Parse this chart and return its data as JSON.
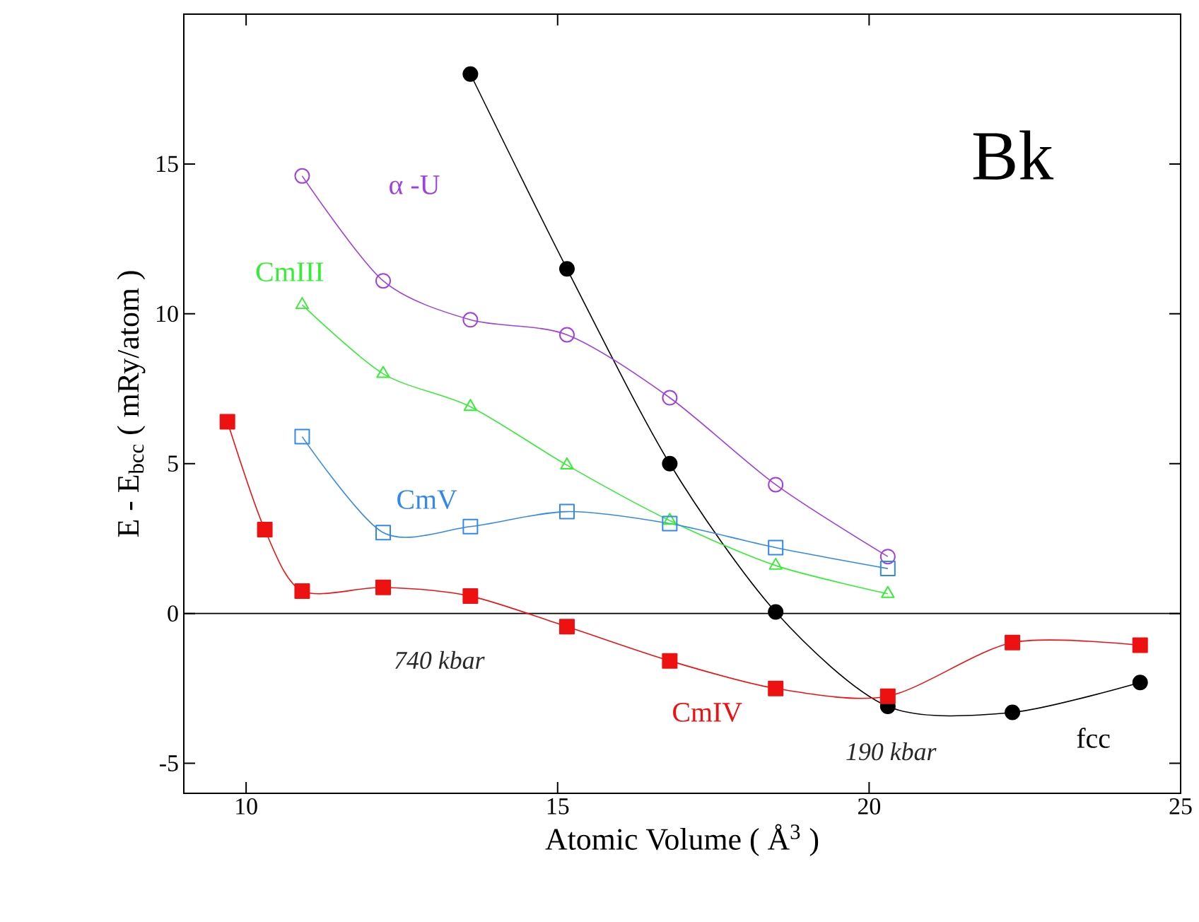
{
  "chart_data": {
    "type": "line",
    "title": "Bk",
    "xlabel": "Atomic Volume ( Å$^{3}$ )",
    "ylabel": "E - E$_{bcc}$ ( mRy/atom )",
    "xlim": [
      9,
      25
    ],
    "ylim": [
      -6,
      20
    ],
    "xticks": [
      10,
      15,
      20,
      25
    ],
    "yticks": [
      -5,
      0,
      5,
      10,
      15
    ],
    "grid": false,
    "ref_lines": [
      {
        "axis": "y",
        "value": 0,
        "color": "#000000"
      }
    ],
    "annotations": [
      "740 kbar",
      "190 kbar"
    ],
    "series": [
      {
        "name": "fcc",
        "color": "#000000",
        "marker": "circle",
        "x": [
          13.6,
          15.15,
          16.8,
          18.5,
          20.3,
          22.3,
          24.35
        ],
        "values": [
          18.0,
          11.5,
          5.0,
          0.05,
          -3.1,
          -3.3,
          -2.3
        ]
      },
      {
        "name": "α -U",
        "color": "#a040e0",
        "marker": "circle",
        "x": [
          10.9,
          12.2,
          13.6,
          15.15,
          16.8,
          18.5,
          20.3
        ],
        "values": [
          14.6,
          11.1,
          9.8,
          9.3,
          7.2,
          4.3,
          1.9
        ]
      },
      {
        "name": "CmIII",
        "color": "#33ee33",
        "marker": "triangle",
        "x": [
          10.9,
          12.2,
          13.6,
          15.15,
          16.8,
          18.5,
          20.3
        ],
        "values": [
          10.3,
          8.0,
          6.9,
          4.95,
          3.1,
          1.6,
          0.66
        ]
      },
      {
        "name": "CmV",
        "color": "#3388ee",
        "marker": "square",
        "x": [
          10.9,
          12.2,
          13.6,
          15.15,
          16.8,
          18.5,
          20.3
        ],
        "values": [
          5.9,
          2.7,
          2.9,
          3.4,
          3.0,
          2.2,
          1.5
        ]
      },
      {
        "name": "CmIV",
        "color": "#ee1111",
        "marker": "square",
        "x": [
          9.7,
          10.3,
          10.9,
          12.2,
          13.6,
          15.15,
          16.8,
          18.5,
          20.3,
          22.3,
          24.35
        ],
        "values": [
          6.4,
          2.8,
          0.75,
          0.87,
          0.58,
          -0.44,
          -1.58,
          -2.5,
          -2.76,
          -0.97,
          -1.06
        ]
      }
    ]
  }
}
